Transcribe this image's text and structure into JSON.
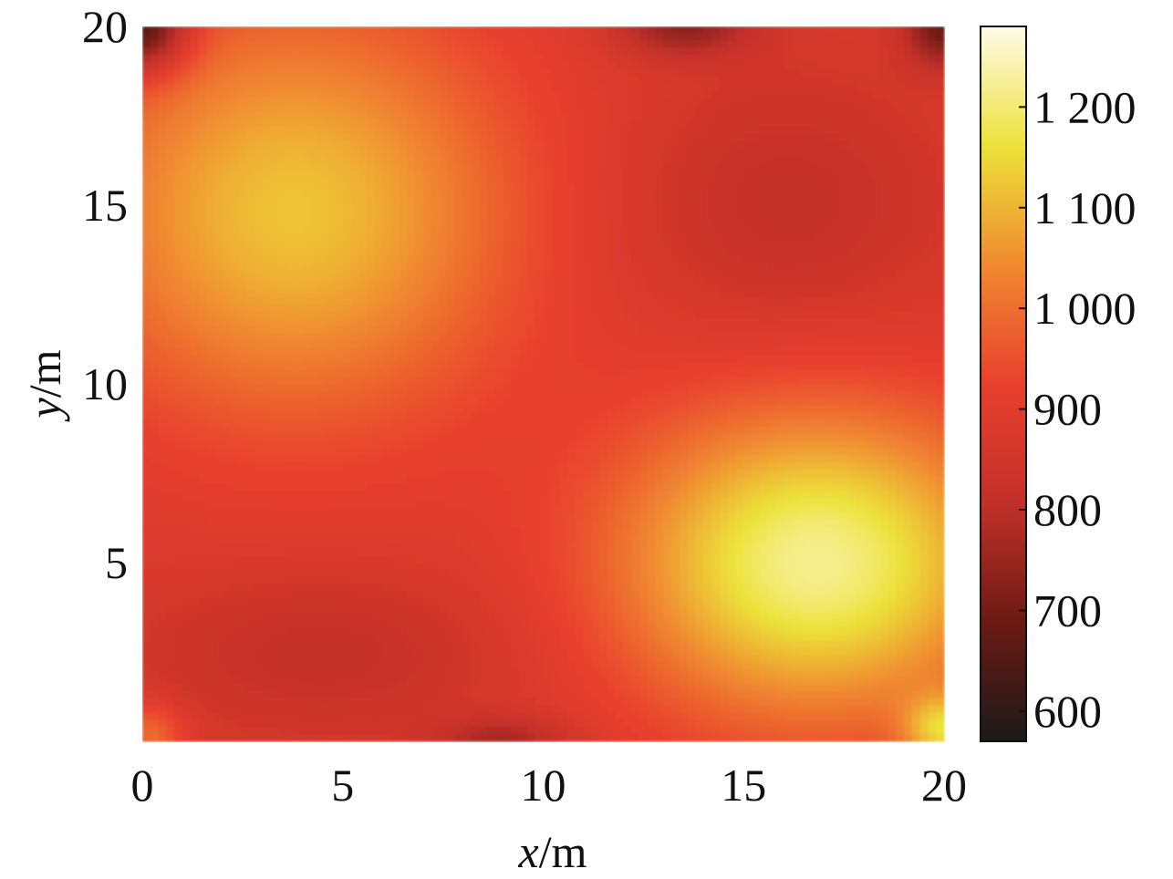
{
  "chart_data": {
    "type": "heatmap",
    "title": "",
    "xlabel": {
      "var": "x",
      "unit": "/m"
    },
    "ylabel": {
      "var": "y",
      "unit": "/m"
    },
    "xlim": [
      0,
      20
    ],
    "ylim": [
      0,
      20
    ],
    "x_ticks": [
      0,
      5,
      10,
      15,
      20
    ],
    "x_tick_labels": [
      "0",
      "5",
      "10",
      "15",
      "20"
    ],
    "y_ticks": [
      5,
      10,
      15,
      20
    ],
    "y_tick_labels": [
      "5",
      "10",
      "15",
      "20"
    ],
    "grid": false,
    "colorbar": {
      "range": [
        570,
        1280
      ],
      "ticks": [
        600,
        700,
        800,
        900,
        1000,
        1100,
        1200
      ],
      "tick_labels": [
        "600",
        "700",
        "800",
        "900",
        "1 000",
        "1 100",
        "1 200"
      ],
      "colormap": "hot",
      "colors": [
        "#1a1a1a",
        "#6b1a14",
        "#c2302a",
        "#e8402e",
        "#f08a30",
        "#ece23a",
        "#fffbe8"
      ]
    },
    "field": {
      "background_value": 880,
      "features": [
        {
          "x": 3.8,
          "y": 14.8,
          "peak": 1120,
          "sx": 3.8,
          "sy": 4.0
        },
        {
          "x": 16.8,
          "y": 5.0,
          "peak": 1220,
          "sx": 3.4,
          "sy": 3.0
        },
        {
          "x": 4.5,
          "y": 2.5,
          "peak": 810,
          "sx": 3.2,
          "sy": 1.6
        },
        {
          "x": 16.0,
          "y": 15.0,
          "peak": 810,
          "sx": 2.8,
          "sy": 2.6
        },
        {
          "x": 13.5,
          "y": 20.0,
          "peak": 740,
          "sx": 1.2,
          "sy": 0.6
        },
        {
          "x": 0.0,
          "y": 20.0,
          "peak": 600,
          "sx": 0.8,
          "sy": 0.9
        },
        {
          "x": 20.0,
          "y": 20.0,
          "peak": 690,
          "sx": 0.7,
          "sy": 0.8
        },
        {
          "x": 9.0,
          "y": 0.0,
          "peak": 770,
          "sx": 1.2,
          "sy": 0.5
        },
        {
          "x": 20.0,
          "y": 0.3,
          "peak": 1100,
          "sx": 0.7,
          "sy": 0.7
        },
        {
          "x": 0.2,
          "y": 0.2,
          "peak": 1000,
          "sx": 0.6,
          "sy": 0.6
        }
      ]
    }
  }
}
